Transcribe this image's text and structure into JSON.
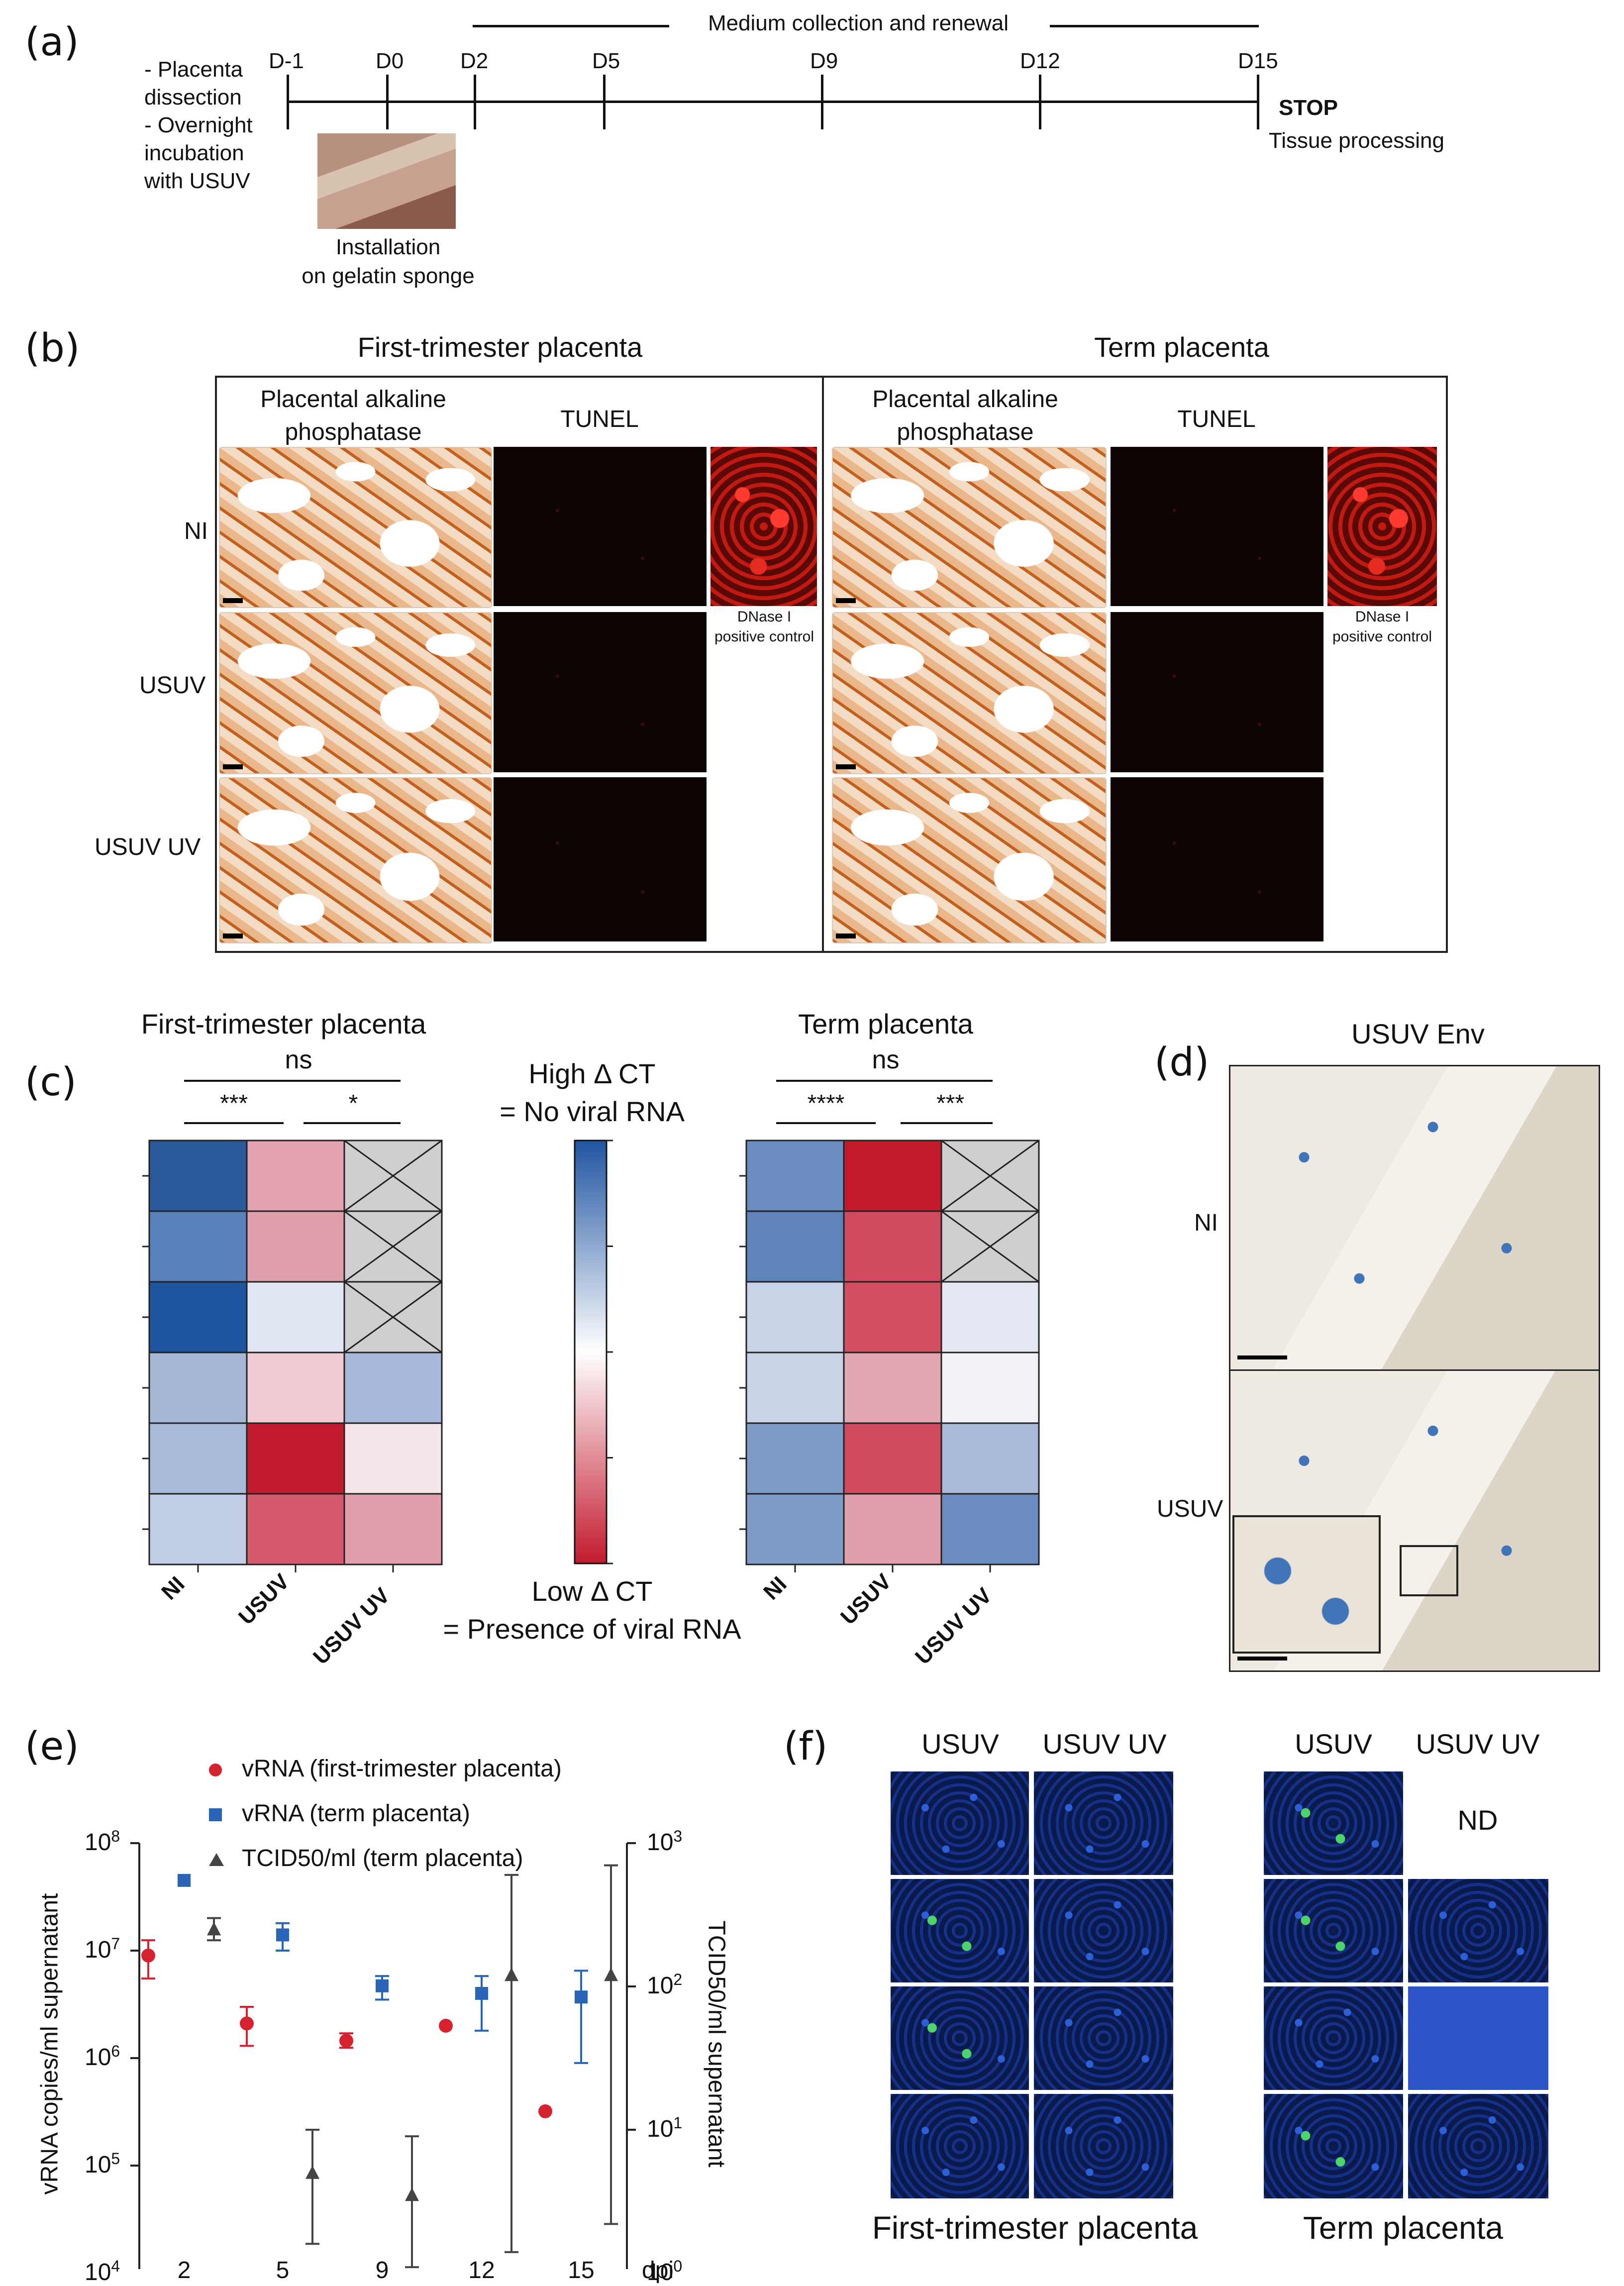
{
  "panel_a": {
    "letter": "(a)",
    "left_notes": [
      "- Placenta",
      "dissection",
      "- Overnight",
      "incubation",
      "with USUV"
    ],
    "medium_label": "Medium collection and renewal",
    "days": [
      "D-1",
      "D0",
      "D2",
      "D5",
      "D9",
      "D12",
      "D15"
    ],
    "stop": "STOP",
    "tissue": "Tissue processing",
    "install_line1": "Installation",
    "install_line2": "on gelatin sponge"
  },
  "panel_b": {
    "letter": "(b)",
    "title_left": "First-trimester placenta",
    "title_right": "Term placenta",
    "col_pap": [
      "Placental alkaline",
      "phosphatase"
    ],
    "col_tunel": "TUNEL",
    "rows": [
      "NI",
      "USUV",
      "USUV UV"
    ],
    "dnase": [
      "DNase I",
      "positive control"
    ]
  },
  "panel_c": {
    "letter": "(c)",
    "title_left": "First-trimester placenta",
    "title_right": "Term placenta",
    "ns": "ns",
    "left_sig": [
      "***",
      "*"
    ],
    "right_sig": [
      "****",
      "***"
    ],
    "legend_high": [
      "High Δ CT",
      "= No viral RNA"
    ],
    "legend_low": [
      "Low Δ CT",
      "= Presence of viral RNA"
    ],
    "x_labels": [
      "NI",
      "USUV",
      "USUV UV"
    ],
    "heat_left": [
      [
        "#2a5a9c",
        "#e2a3ae",
        "X"
      ],
      [
        "#5a82ba",
        "#e0a0ab",
        "X"
      ],
      [
        "#1f54a0",
        "#e0e6f2",
        "X"
      ],
      [
        "#a7b8d6",
        "#efcbd2",
        "#a8badb"
      ],
      [
        "#a9badb",
        "#c21a2e",
        "#f5e6ea"
      ],
      [
        "#c0cde4",
        "#d45a6c",
        "#e0a0ab"
      ]
    ],
    "heat_right": [
      [
        "#6b8cc0",
        "#c41a2c",
        "X"
      ],
      [
        "#5f84ba",
        "#d24a5e",
        "X"
      ],
      [
        "#c8d3e8",
        "#d24e60",
        "#e4e8f2"
      ],
      [
        "#c8d3e8",
        "#e2a6b2",
        "#f2f2f6"
      ],
      [
        "#7e9cc8",
        "#d24a5e",
        "#a9badb"
      ],
      [
        "#7e9cc8",
        "#e0a0ab",
        "#6b8cc0"
      ]
    ],
    "colors": {
      "high": "#1f54a0",
      "mid": "#ffffff",
      "low": "#c21a2e",
      "na": "#cfcfcf"
    }
  },
  "panel_d": {
    "letter": "(d)",
    "title": "USUV  Env",
    "rows": [
      "NI",
      "USUV"
    ]
  },
  "panel_e": {
    "letter": "(e)",
    "legend": [
      {
        "label": "vRNA (first-trimester placenta)",
        "marker": "circle",
        "color": "#d6222f"
      },
      {
        "label": "vRNA (term placenta)",
        "marker": "square",
        "color": "#2a64b8"
      },
      {
        "label": "TCID50/ml (term placenta)",
        "marker": "triangle",
        "color": "#444444"
      }
    ],
    "ylabel_left": "vRNA copies/ml supernatant",
    "ylabel_right": "TCID50/ml supernatant",
    "xlabel": "dpi",
    "left_ticks": [
      {
        "base": "10",
        "exp": "8"
      },
      {
        "base": "10",
        "exp": "7"
      },
      {
        "base": "10",
        "exp": "6"
      },
      {
        "base": "10",
        "exp": "5"
      },
      {
        "base": "10",
        "exp": "4"
      }
    ],
    "right_ticks": [
      {
        "base": "10",
        "exp": "3"
      },
      {
        "base": "10",
        "exp": "2"
      },
      {
        "base": "10",
        "exp": "1"
      },
      {
        "base": "10",
        "exp": "0"
      }
    ],
    "x_ticks": [
      "2",
      "5",
      "9",
      "12",
      "15"
    ]
  },
  "chart_data": {
    "type": "scatter",
    "x_categories": [
      "2",
      "5",
      "9",
      "12",
      "15"
    ],
    "xlabel": "dpi",
    "ylabel": "vRNA copies/ml supernatant",
    "ylabel_right": "TCID50/ml supernatant",
    "y_scale": "log",
    "ylim": [
      10000,
      100000000
    ],
    "ylim_right": [
      1,
      1000
    ],
    "series": [
      {
        "name": "vRNA (first-trimester placenta)",
        "axis": "left",
        "x": [
          2,
          5,
          9,
          12,
          15
        ],
        "y": [
          9000000,
          2100000,
          1450000,
          2000000,
          320000
        ],
        "err_low": [
          5500000,
          1300000,
          1250000,
          null,
          null
        ],
        "err_high": [
          12500000,
          3000000,
          1700000,
          null,
          null
        ]
      },
      {
        "name": "vRNA (term placenta)",
        "axis": "left",
        "x": [
          2,
          5,
          9,
          12,
          15
        ],
        "y": [
          45000000,
          14000000,
          4700000,
          4000000,
          3700000
        ],
        "err_low": [
          null,
          10000000,
          3500000,
          1800000,
          900000
        ],
        "err_high": [
          null,
          18000000,
          5800000,
          5800000,
          6500000
        ]
      },
      {
        "name": "TCID50/ml (term placenta)",
        "axis": "right",
        "x": [
          2,
          5,
          9,
          12,
          15
        ],
        "y": [
          250,
          5,
          3.5,
          120,
          120
        ],
        "err_low": [
          210,
          1.6,
          1.1,
          1.4,
          2.2
        ],
        "err_high": [
          300,
          10,
          9,
          600,
          700
        ]
      }
    ]
  },
  "panel_f": {
    "letter": "(f)",
    "cols_left": [
      "USUV",
      "USUV UV"
    ],
    "cols_right": [
      "USUV",
      "USUV UV"
    ],
    "nd": "ND",
    "caption_left": "First-trimester placenta",
    "caption_right": "Term placenta"
  }
}
